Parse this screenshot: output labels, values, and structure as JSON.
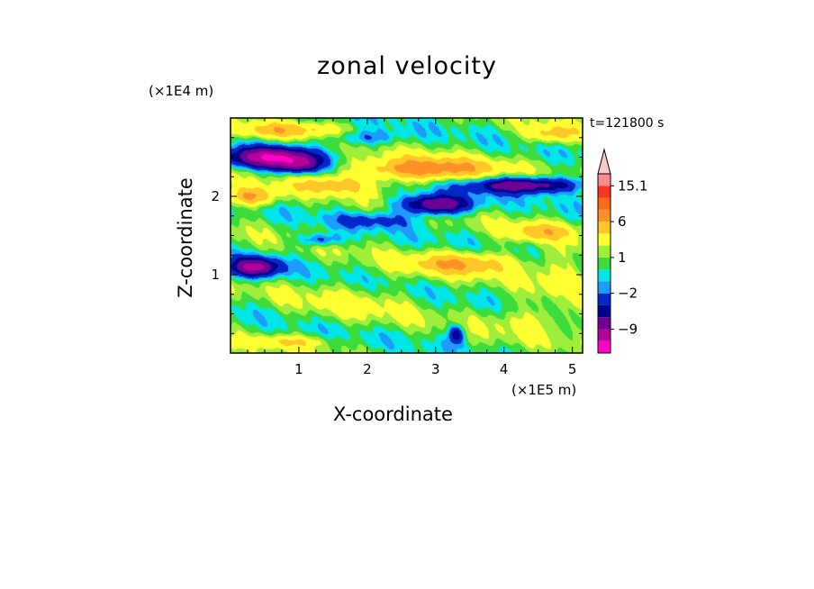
{
  "chart_data": {
    "type": "heatmap",
    "title": "zonal velocity",
    "xlabel": "X-coordinate",
    "ylabel": "Z-coordinate",
    "x_unit": "(×1E5 m)",
    "y_unit": "(×1E4 m)",
    "time_label": "t=121800 s",
    "xlim": [
      0,
      5.15
    ],
    "ylim": [
      0,
      3.0
    ],
    "x_ticks": [
      "1",
      "2",
      "3",
      "4",
      "5"
    ],
    "x_tick_values": [
      1,
      2,
      3,
      4,
      5
    ],
    "y_ticks": [
      "1",
      "2"
    ],
    "y_tick_values": [
      1,
      2
    ],
    "colorbar": {
      "levels": [
        -15,
        -12,
        -9,
        -6,
        -4,
        -2,
        -1,
        0,
        1,
        2,
        4,
        6,
        9,
        12,
        15.1
      ],
      "colors": [
        "#ff00c8",
        "#b40096",
        "#6e0096",
        "#00008c",
        "#0028c8",
        "#1e9bff",
        "#00e6e6",
        "#3cdc3c",
        "#a0ee3c",
        "#ffff32",
        "#ffc828",
        "#ff9128",
        "#ff6a14",
        "#ff3228",
        "#ff8c8c",
        "#ffc8c8"
      ],
      "labels": [
        {
          "text": "15.1",
          "value": 15.1
        },
        {
          "text": "6",
          "value": 6
        },
        {
          "text": "1",
          "value": 1
        },
        {
          "text": "−2",
          "value": -2
        },
        {
          "text": "−9",
          "value": -9
        }
      ],
      "extend": "max"
    },
    "features": [
      {
        "x": 0.6,
        "z": 2.5,
        "u": -12,
        "sx": 0.6,
        "sz": 0.13
      },
      {
        "x": 1.0,
        "z": 2.4,
        "u": -6,
        "sx": 0.3,
        "sz": 0.1
      },
      {
        "x": 3.0,
        "z": 1.9,
        "u": -10,
        "sx": 0.5,
        "sz": 0.12
      },
      {
        "x": 4.3,
        "z": 2.15,
        "u": -9,
        "sx": 0.8,
        "sz": 0.1
      },
      {
        "x": 0.35,
        "z": 1.1,
        "u": -10,
        "sx": 0.35,
        "sz": 0.12
      },
      {
        "x": 1.3,
        "z": 1.45,
        "u": -4,
        "sx": 0.3,
        "sz": 0.08
      },
      {
        "x": 2.1,
        "z": 1.7,
        "u": -3,
        "sx": 0.6,
        "sz": 0.1
      },
      {
        "x": 1.9,
        "z": 2.75,
        "u": -3,
        "sx": 0.6,
        "sz": 0.1
      },
      {
        "x": 3.3,
        "z": 0.25,
        "u": -6,
        "sx": 0.12,
        "sz": 0.12
      },
      {
        "x": 0.3,
        "z": 2.0,
        "u": 6,
        "sx": 0.35,
        "sz": 0.12
      },
      {
        "x": 2.8,
        "z": 2.35,
        "u": 7,
        "sx": 1.0,
        "sz": 0.15
      },
      {
        "x": 1.5,
        "z": 2.15,
        "u": 4,
        "sx": 0.6,
        "sz": 0.12
      },
      {
        "x": 0.8,
        "z": 2.85,
        "u": 4,
        "sx": 0.8,
        "sz": 0.1
      },
      {
        "x": 3.4,
        "z": 1.15,
        "u": 5,
        "sx": 0.8,
        "sz": 0.15
      },
      {
        "x": 4.5,
        "z": 1.55,
        "u": 4,
        "sx": 0.5,
        "sz": 0.12
      },
      {
        "x": 4.7,
        "z": 2.8,
        "u": 4,
        "sx": 0.4,
        "sz": 0.12
      },
      {
        "x": 4.8,
        "z": 1.05,
        "u": 2,
        "sx": 0.4,
        "sz": 0.3
      },
      {
        "x": 1.8,
        "z": 0.65,
        "u": 1.5,
        "sx": 0.9,
        "sz": 0.25
      },
      {
        "x": 4.5,
        "z": 0.45,
        "u": 2,
        "sx": 0.8,
        "sz": 0.2
      },
      {
        "x": 0.8,
        "z": 0.15,
        "u": 3,
        "sx": 0.6,
        "sz": 0.08
      }
    ]
  }
}
